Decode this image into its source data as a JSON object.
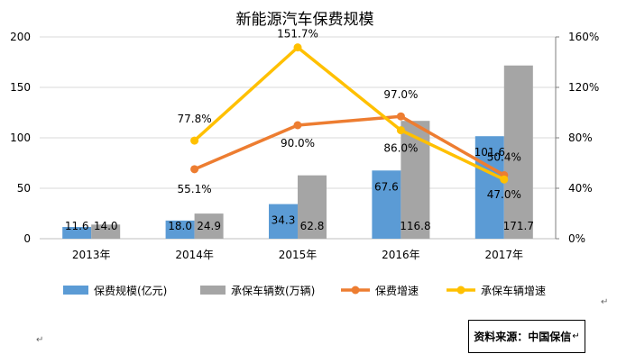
{
  "chart_data": {
    "type": "bar+line",
    "title": "新能源汽车保费规模",
    "categories": [
      "2013年",
      "2014年",
      "2015年",
      "2016年",
      "2017年"
    ],
    "bar_series": [
      {
        "name": "保费规模(亿元)",
        "color": "#5B9BD5",
        "values": [
          11.6,
          18.0,
          34.3,
          67.6,
          101.6
        ],
        "labels": [
          "11.6",
          "18.0",
          "34.3",
          "67.6",
          "101.6"
        ]
      },
      {
        "name": "承保车辆数(万辆)",
        "color": "#A5A5A5",
        "values": [
          14.0,
          24.9,
          62.8,
          116.8,
          171.7
        ],
        "labels": [
          "14.0",
          "24.9",
          "62.8",
          "116.8",
          "171.7"
        ]
      }
    ],
    "line_series": [
      {
        "name": "保费增速",
        "color": "#ED7D31",
        "values": [
          null,
          55.1,
          90.0,
          97.0,
          50.4
        ],
        "labels": [
          "",
          "55.1%",
          "90.0%",
          "97.0%",
          "50.4%"
        ]
      },
      {
        "name": "承保车辆增速",
        "color": "#FFC000",
        "values": [
          null,
          77.8,
          151.7,
          86.0,
          47.0
        ],
        "labels": [
          "",
          "77.8%",
          "151.7%",
          "86.0%",
          "47.0%"
        ]
      }
    ],
    "left_axis": {
      "min": 0,
      "max": 200,
      "ticks": [
        "0",
        "50",
        "100",
        "150",
        "200"
      ]
    },
    "right_axis": {
      "min": 0,
      "max": 160,
      "ticks": [
        "0%",
        "40%",
        "80%",
        "120%",
        "160%"
      ]
    },
    "grid": true,
    "legend_position": "bottom"
  },
  "source_box": {
    "text": "资料来源：中国保信",
    "mark": "↵"
  },
  "para_marks": [
    "↵",
    "↵"
  ]
}
